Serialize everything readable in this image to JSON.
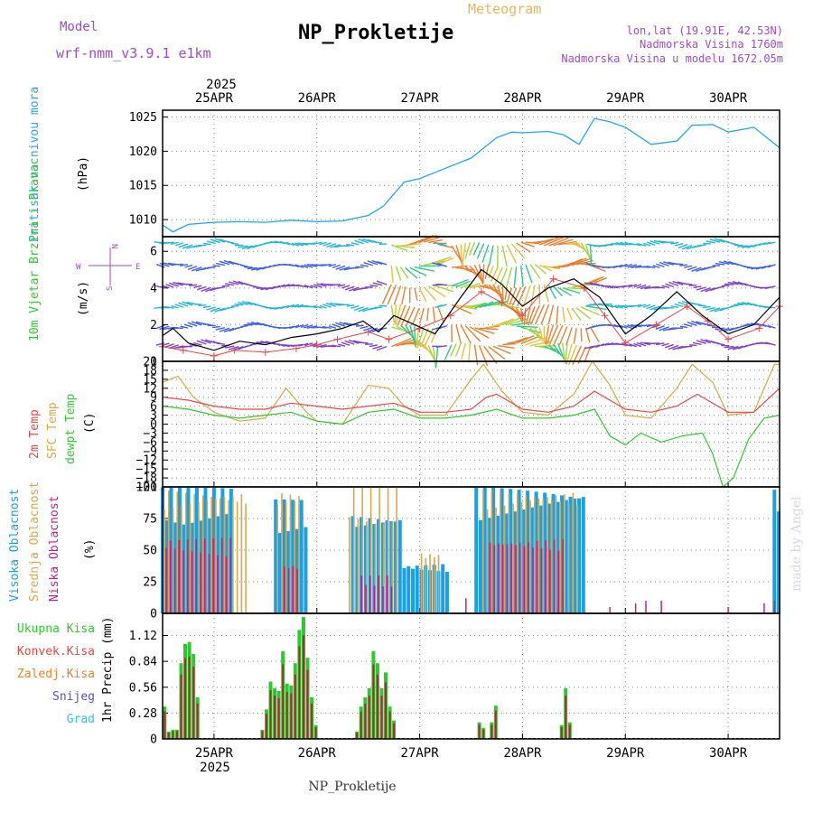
{
  "header": {
    "model_label": "Model",
    "model_name": "wrf-nmm_v3.9.1 e1km",
    "title": "NP_Prokletije",
    "subtitle": "Meteogram",
    "lonlat": "lon,lat (19.91E, 42.53N)",
    "elevation": "Nadmorska Visina 1760m",
    "model_elevation": "Nadmorska Visina u modelu 1672.05m",
    "watermark": "made by Angel",
    "footer": "NP_Prokletije"
  },
  "axis_x": {
    "year": "2025",
    "day_labels": [
      "25APR",
      "26APR",
      "27APR",
      "28APR",
      "29APR",
      "30APR"
    ],
    "start_day": 24.5,
    "end_day": 30.5
  },
  "colors": {
    "pressure": "#1fa8e8",
    "temp2m": "#e84848",
    "sfc_temp": "#d8a848",
    "dewpt": "#30c830",
    "cloud_high": "#18a0e8",
    "cloud_mid": "#d8a848",
    "cloud_low": "#c0208c",
    "precip_total": "#30c830",
    "precip_conv": "#e84848",
    "precip_frozen": "#f08030",
    "snow": "#5050e0",
    "grad": "#30c8c8",
    "wind_label": "#2ec82e",
    "model_text": "#9c4cc8",
    "meteo_text": "#e8b858"
  },
  "chart_data": [
    {
      "type": "line",
      "panel": "pressure",
      "ylabel": "Pritisak na nivou mora",
      "unit": "(hPa)",
      "ylim": [
        1007.5,
        1026
      ],
      "yticks": [
        "1010",
        "1015",
        "1020",
        "1025"
      ],
      "series": [
        {
          "values": [
            [
              24.5,
              1009.2
            ],
            [
              24.6,
              1008.2
            ],
            [
              24.75,
              1009.3
            ],
            [
              25.0,
              1009.6
            ],
            [
              25.25,
              1009.7
            ],
            [
              25.5,
              1009.6
            ],
            [
              25.75,
              1009.9
            ],
            [
              26.0,
              1009.7
            ],
            [
              26.25,
              1009.8
            ],
            [
              26.5,
              1010.6
            ],
            [
              26.65,
              1012.0
            ],
            [
              26.85,
              1015.5
            ],
            [
              27.0,
              1016.0
            ],
            [
              27.25,
              1017.5
            ],
            [
              27.5,
              1019.0
            ],
            [
              27.75,
              1022.0
            ],
            [
              27.9,
              1022.8
            ],
            [
              28.0,
              1022.7
            ],
            [
              28.25,
              1022.9
            ],
            [
              28.4,
              1022.4
            ],
            [
              28.55,
              1021.0
            ],
            [
              28.7,
              1024.8
            ],
            [
              28.85,
              1024.3
            ],
            [
              29.0,
              1023.5
            ],
            [
              29.25,
              1021.0
            ],
            [
              29.5,
              1021.5
            ],
            [
              29.65,
              1023.8
            ],
            [
              29.85,
              1023.9
            ],
            [
              30.0,
              1022.8
            ],
            [
              30.25,
              1023.5
            ],
            [
              30.5,
              1020.5
            ]
          ]
        }
      ]
    },
    {
      "type": "line",
      "panel": "wind",
      "ylabel": "10m Vjetar Brzina i Pravac",
      "unit": "(m/s)",
      "compass": [
        "N",
        "W",
        "E",
        "S"
      ],
      "ylim": [
        0,
        6.8
      ],
      "yticks": [
        "0",
        "2",
        "4",
        "6"
      ],
      "series": [
        {
          "values": [
            [
              24.5,
              1.4
            ],
            [
              24.6,
              1.8
            ],
            [
              24.75,
              1.0
            ],
            [
              25.0,
              0.6
            ],
            [
              25.25,
              1.1
            ],
            [
              25.5,
              0.9
            ],
            [
              25.75,
              1.3
            ],
            [
              26.0,
              1.5
            ],
            [
              26.25,
              1.8
            ],
            [
              26.45,
              2.2
            ],
            [
              26.6,
              1.6
            ],
            [
              26.75,
              2.5
            ],
            [
              26.95,
              2.0
            ],
            [
              27.15,
              1.5
            ],
            [
              27.4,
              3.5
            ],
            [
              27.6,
              5.0
            ],
            [
              27.8,
              4.2
            ],
            [
              28.0,
              3.0
            ],
            [
              28.25,
              4.0
            ],
            [
              28.5,
              4.5
            ],
            [
              28.75,
              3.5
            ],
            [
              29.0,
              1.5
            ],
            [
              29.25,
              2.5
            ],
            [
              29.5,
              3.8
            ],
            [
              29.75,
              2.5
            ],
            [
              30.0,
              1.5
            ],
            [
              30.25,
              2.0
            ],
            [
              30.5,
              3.5
            ]
          ]
        },
        {
          "values": [
            [
              24.5,
              0.8
            ],
            [
              24.7,
              0.6
            ],
            [
              25.0,
              0.3
            ],
            [
              25.2,
              0.6
            ],
            [
              25.5,
              0.5
            ],
            [
              25.8,
              0.7
            ],
            [
              26.0,
              0.9
            ],
            [
              26.2,
              1.2
            ],
            [
              26.5,
              1.6
            ],
            [
              26.7,
              1.2
            ],
            [
              27.0,
              1.8
            ],
            [
              27.3,
              2.5
            ],
            [
              27.6,
              3.8
            ],
            [
              27.8,
              3.2
            ],
            [
              28.0,
              2.5
            ],
            [
              28.3,
              4.5
            ],
            [
              28.6,
              4.0
            ],
            [
              28.8,
              2.5
            ],
            [
              29.0,
              1.0
            ],
            [
              29.3,
              2.0
            ],
            [
              29.6,
              3.0
            ],
            [
              29.8,
              2.2
            ],
            [
              30.0,
              1.2
            ],
            [
              30.3,
              1.8
            ],
            [
              30.5,
              3.0
            ]
          ]
        }
      ],
      "vector_rows": [
        0.9,
        1.9,
        3.0,
        4.1,
        5.2,
        6.4
      ]
    },
    {
      "type": "line",
      "panel": "temperature",
      "ylabels": [
        "2m Temp",
        "SFC Temp",
        "dewpt Temp"
      ],
      "unit": "(C)",
      "ylim": [
        -21,
        21
      ],
      "yticks": [
        "21",
        "18",
        "15",
        "12",
        "9",
        "6",
        "3",
        "0",
        "−3",
        "−6",
        "−9",
        "−12",
        "−15",
        "−18",
        "−21"
      ],
      "series": [
        {
          "values": [
            [
              24.5,
              9
            ],
            [
              24.75,
              8
            ],
            [
              25.0,
              6
            ],
            [
              25.25,
              5
            ],
            [
              25.5,
              5
            ],
            [
              25.75,
              7
            ],
            [
              26.0,
              6
            ],
            [
              26.25,
              5
            ],
            [
              26.5,
              6
            ],
            [
              26.75,
              7
            ],
            [
              27.0,
              4
            ],
            [
              27.25,
              4
            ],
            [
              27.5,
              5
            ],
            [
              27.65,
              9
            ],
            [
              27.75,
              10
            ],
            [
              28.0,
              5
            ],
            [
              28.25,
              4
            ],
            [
              28.5,
              6
            ],
            [
              28.7,
              11
            ],
            [
              29.0,
              5
            ],
            [
              29.25,
              4
            ],
            [
              29.5,
              6
            ],
            [
              29.7,
              10
            ],
            [
              30.0,
              4
            ],
            [
              30.25,
              4
            ],
            [
              30.5,
              12
            ]
          ]
        },
        {
          "values": [
            [
              24.5,
              14
            ],
            [
              24.65,
              16
            ],
            [
              24.8,
              9
            ],
            [
              25.0,
              4
            ],
            [
              25.25,
              1
            ],
            [
              25.5,
              2
            ],
            [
              25.7,
              12
            ],
            [
              25.9,
              4
            ],
            [
              26.0,
              1
            ],
            [
              26.25,
              0
            ],
            [
              26.5,
              13
            ],
            [
              26.7,
              12
            ],
            [
              26.85,
              6
            ],
            [
              27.0,
              3
            ],
            [
              27.25,
              3
            ],
            [
              27.5,
              15
            ],
            [
              27.62,
              20
            ],
            [
              27.8,
              11
            ],
            [
              28.0,
              4
            ],
            [
              28.25,
              3
            ],
            [
              28.5,
              10
            ],
            [
              28.68,
              21
            ],
            [
              28.85,
              13
            ],
            [
              29.0,
              3
            ],
            [
              29.25,
              2
            ],
            [
              29.5,
              12
            ],
            [
              29.65,
              20
            ],
            [
              29.85,
              14
            ],
            [
              30.0,
              3
            ],
            [
              30.25,
              4
            ],
            [
              30.45,
              20
            ],
            [
              30.5,
              20
            ]
          ]
        },
        {
          "values": [
            [
              24.5,
              6
            ],
            [
              24.75,
              5
            ],
            [
              25.0,
              3
            ],
            [
              25.25,
              2
            ],
            [
              25.5,
              3
            ],
            [
              25.75,
              4
            ],
            [
              26.0,
              1
            ],
            [
              26.25,
              0
            ],
            [
              26.5,
              4
            ],
            [
              26.75,
              5
            ],
            [
              27.0,
              2
            ],
            [
              27.25,
              2
            ],
            [
              27.5,
              3
            ],
            [
              27.75,
              5
            ],
            [
              28.0,
              2
            ],
            [
              28.25,
              2
            ],
            [
              28.5,
              3
            ],
            [
              28.7,
              5
            ],
            [
              28.85,
              -4
            ],
            [
              29.0,
              -7
            ],
            [
              29.15,
              -3
            ],
            [
              29.35,
              -6
            ],
            [
              29.55,
              -4
            ],
            [
              29.75,
              -3
            ],
            [
              29.85,
              -10
            ],
            [
              29.95,
              -21
            ],
            [
              30.05,
              -18
            ],
            [
              30.2,
              -5
            ],
            [
              30.35,
              2
            ],
            [
              30.5,
              3
            ]
          ]
        }
      ]
    },
    {
      "type": "bar",
      "panel": "clouds",
      "ylabels": [
        "Visoka Oblacnost",
        "Srednja Oblacnost",
        "Niska Oblacnost"
      ],
      "unit": "(%)",
      "ylim": [
        0,
        100
      ],
      "yticks": [
        "0",
        "25",
        "50",
        "75",
        "100"
      ],
      "cloud_spans": [
        {
          "series": "high",
          "ranges": [
            [
              24.5,
              25.2,
              100
            ],
            [
              25.6,
              25.9,
              90
            ],
            [
              26.35,
              26.85,
              80
            ],
            [
              26.85,
              27.3,
              40
            ],
            [
              27.55,
              28.6,
              100
            ],
            [
              30.45,
              30.5,
              100
            ]
          ]
        },
        {
          "series": "mid",
          "ranges": [
            [
              24.5,
              25.3,
              100
            ],
            [
              25.6,
              25.85,
              100
            ],
            [
              26.3,
              26.8,
              100
            ],
            [
              27.0,
              27.2,
              50
            ],
            [
              27.6,
              28.55,
              100
            ]
          ]
        },
        {
          "series": "low",
          "ranges": [
            [
              24.5,
              25.15,
              60
            ],
            [
              25.65,
              25.8,
              40
            ],
            [
              26.4,
              26.7,
              30
            ],
            [
              27.65,
              28.4,
              60
            ]
          ]
        }
      ],
      "low_spikes": [
        [
          27.45,
          12
        ],
        [
          28.85,
          5
        ],
        [
          29.1,
          8
        ],
        [
          29.2,
          10
        ],
        [
          29.35,
          10
        ],
        [
          30.0,
          5
        ],
        [
          30.35,
          8
        ],
        [
          30.45,
          10
        ]
      ]
    },
    {
      "type": "bar",
      "panel": "precip",
      "legend": [
        "Ukupna Kisa",
        "Konvek.Kisa",
        "Zaledj.Kisa",
        "Snijeg",
        "Grad"
      ],
      "unit": "1hr Precip (mm)",
      "ylim": [
        0,
        1.36
      ],
      "yticks": [
        "0",
        "0.28",
        "0.56",
        "0.84",
        "1.12"
      ],
      "values": [
        [
          24.52,
          0.35
        ],
        [
          24.56,
          0.08
        ],
        [
          24.6,
          0.1
        ],
        [
          24.64,
          0.1
        ],
        [
          24.68,
          0.82
        ],
        [
          24.72,
          1.03
        ],
        [
          24.76,
          1.05
        ],
        [
          24.8,
          0.92
        ],
        [
          24.84,
          0.45
        ],
        [
          25.47,
          0.1
        ],
        [
          25.51,
          0.32
        ],
        [
          25.55,
          0.62
        ],
        [
          25.59,
          0.55
        ],
        [
          25.63,
          0.52
        ],
        [
          25.67,
          0.95
        ],
        [
          25.71,
          0.6
        ],
        [
          25.75,
          0.58
        ],
        [
          25.79,
          0.82
        ],
        [
          25.83,
          1.18
        ],
        [
          25.87,
          1.32
        ],
        [
          25.91,
          0.88
        ],
        [
          25.95,
          0.45
        ],
        [
          25.99,
          0.15
        ],
        [
          26.39,
          0.08
        ],
        [
          26.43,
          0.35
        ],
        [
          26.47,
          0.45
        ],
        [
          26.51,
          0.55
        ],
        [
          26.55,
          0.95
        ],
        [
          26.59,
          0.82
        ],
        [
          26.63,
          0.55
        ],
        [
          26.67,
          0.72
        ],
        [
          26.71,
          0.35
        ],
        [
          26.75,
          0.2
        ],
        [
          27.58,
          0.18
        ],
        [
          27.62,
          0.12
        ],
        [
          27.7,
          0.18
        ],
        [
          27.74,
          0.36
        ],
        [
          28.38,
          0.15
        ],
        [
          28.42,
          0.55
        ],
        [
          28.46,
          0.18
        ]
      ]
    }
  ]
}
